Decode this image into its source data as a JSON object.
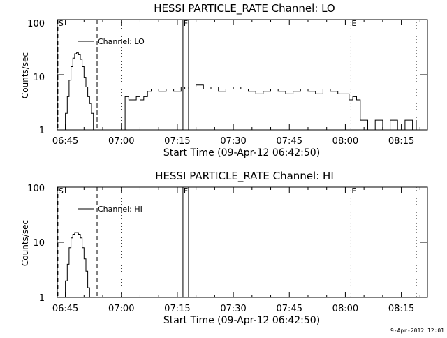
{
  "chart_data": [
    {
      "type": "line",
      "title": "HESSI PARTICLE_RATE Channel: LO",
      "xlabel": "Start Time (09-Apr-12 06:42:50)",
      "ylabel": "Counts/sec",
      "yscale": "log",
      "ylim": [
        1,
        100
      ],
      "ytick_labels": [
        "1",
        "10",
        "100"
      ],
      "xlim": [
        "06:42:50",
        "08:22:00"
      ],
      "xtick_labels": [
        "06:45",
        "07:00",
        "07:15",
        "07:30",
        "07:45",
        "08:00",
        "08:15"
      ],
      "legend": "top-left",
      "series": [
        {
          "name": "Channel: LO",
          "x": [
            "06:43:00",
            "06:44:00",
            "06:45:00",
            "06:45:30",
            "06:46:00",
            "06:46:30",
            "06:47:00",
            "06:47:30",
            "06:48:00",
            "06:48:30",
            "06:49:00",
            "06:49:30",
            "06:50:00",
            "06:50:30",
            "06:51:00",
            "06:51:30",
            "06:52:00",
            "06:52:30",
            "06:53:00",
            "06:53:30",
            "06:54:00",
            "06:58:00",
            "06:59:00",
            "07:00:00",
            "07:01:00",
            "07:02:00",
            "07:04:00",
            "07:05:00",
            "07:06:00",
            "07:07:00",
            "07:08:00",
            "07:10:00",
            "07:12:00",
            "07:14:00",
            "07:16:00",
            "07:17:00",
            "07:18:00",
            "07:20:00",
            "07:22:00",
            "07:24:00",
            "07:26:00",
            "07:28:00",
            "07:30:00",
            "07:32:00",
            "07:34:00",
            "07:36:00",
            "07:38:00",
            "07:40:00",
            "07:42:00",
            "07:44:00",
            "07:46:00",
            "07:48:00",
            "07:50:00",
            "07:52:00",
            "07:54:00",
            "07:56:00",
            "07:58:00",
            "08:00:00",
            "08:01:00",
            "08:02:00",
            "08:03:00",
            "08:04:00",
            "08:05:00",
            "08:06:00",
            "08:08:00",
            "08:10:00",
            "08:12:00",
            "08:14:00",
            "08:16:00",
            "08:18:00",
            "08:19:00"
          ],
          "y": [
            1,
            1,
            2,
            4,
            8,
            14,
            20,
            24,
            25,
            23,
            19,
            14,
            9,
            6,
            4,
            3,
            2,
            1,
            1,
            1,
            1,
            1,
            1,
            1,
            4,
            3.5,
            4,
            3.5,
            4,
            5,
            5.5,
            5,
            5.5,
            5,
            6,
            5.5,
            6,
            6.5,
            5.5,
            6,
            5,
            5.5,
            6,
            5.5,
            5,
            4.5,
            5,
            5.5,
            5,
            4.5,
            5,
            5.5,
            5,
            4.5,
            5.5,
            5,
            4.5,
            4.5,
            3.5,
            4,
            3.5,
            1.5,
            1.5,
            1,
            1.5,
            1,
            1.5,
            1,
            1.5,
            1,
            1.5
          ]
        }
      ],
      "markers": [
        {
          "label": "S",
          "time": "06:43:00",
          "style": "dashed"
        },
        {
          "label": "",
          "time": "06:53:30",
          "style": "dashed"
        },
        {
          "label": "",
          "time": "07:00:00",
          "style": "dotted"
        },
        {
          "label": "F",
          "time": "07:16:30",
          "style": "solid"
        },
        {
          "label": "",
          "time": "07:18:00",
          "style": "solid"
        },
        {
          "label": "E",
          "time": "08:01:30",
          "style": "dotted"
        },
        {
          "label": "",
          "time": "08:19:00",
          "style": "dotted"
        }
      ]
    },
    {
      "type": "line",
      "title": "HESSI PARTICLE_RATE Channel: HI",
      "xlabel": "Start Time (09-Apr-12 06:42:50)",
      "ylabel": "Counts/sec",
      "yscale": "log",
      "ylim": [
        1,
        100
      ],
      "ytick_labels": [
        "1",
        "10",
        "100"
      ],
      "xlim": [
        "06:42:50",
        "08:22:00"
      ],
      "xtick_labels": [
        "06:45",
        "07:00",
        "07:15",
        "07:30",
        "07:45",
        "08:00",
        "08:15"
      ],
      "legend": "top-left",
      "series": [
        {
          "name": "Channel: HI",
          "x": [
            "06:44:00",
            "06:45:00",
            "06:45:30",
            "06:46:00",
            "06:46:30",
            "06:47:00",
            "06:47:30",
            "06:48:00",
            "06:48:30",
            "06:49:00",
            "06:49:30",
            "06:50:00",
            "06:50:30",
            "06:51:00",
            "06:51:30"
          ],
          "y": [
            1,
            2,
            4,
            8,
            12,
            14,
            15,
            15,
            14,
            12,
            8,
            5,
            3,
            1.5,
            1
          ]
        }
      ],
      "markers": [
        {
          "label": "S",
          "time": "06:43:00",
          "style": "dashed"
        },
        {
          "label": "",
          "time": "06:53:30",
          "style": "dashed"
        },
        {
          "label": "",
          "time": "07:00:00",
          "style": "dotted"
        },
        {
          "label": "F",
          "time": "07:16:30",
          "style": "solid"
        },
        {
          "label": "",
          "time": "07:18:00",
          "style": "solid"
        },
        {
          "label": "E",
          "time": "08:01:30",
          "style": "dotted"
        },
        {
          "label": "",
          "time": "08:19:00",
          "style": "dotted"
        }
      ]
    }
  ],
  "footer": {
    "timestamp": "9-Apr-2012 12:01"
  }
}
